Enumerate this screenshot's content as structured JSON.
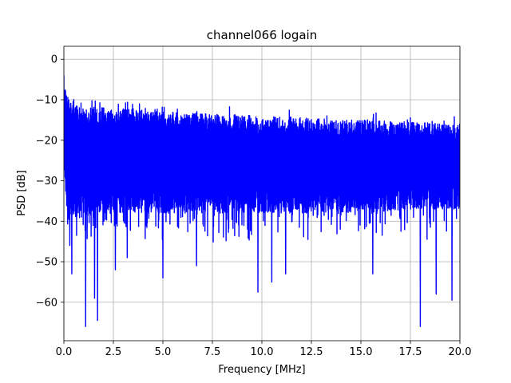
{
  "chart_data": {
    "type": "line",
    "title": "channel066 logain",
    "xlabel": "Frequency [MHz]",
    "ylabel": "PSD [dB]",
    "xlim": [
      0,
      20
    ],
    "ylim": [
      -69.5,
      3.2
    ],
    "xticks": [
      0,
      2.5,
      5,
      7.5,
      10,
      12.5,
      15,
      17.5,
      20
    ],
    "xtick_labels": [
      "0.0",
      "2.5",
      "5.0",
      "7.5",
      "10.0",
      "12.5",
      "15.0",
      "17.5",
      "20.0"
    ],
    "yticks": [
      0,
      -10,
      -20,
      -30,
      -40,
      -50,
      -60
    ],
    "ytick_labels": [
      "0",
      "−10",
      "−20",
      "−30",
      "−40",
      "−50",
      "−60"
    ],
    "grid": true,
    "series": [
      {
        "color": "#0000ff",
        "description_of_shape": "dense noise-like PSD",
        "envelope": {
          "x": [
            0,
            0.1,
            0.3,
            1,
            2.5,
            5,
            7.5,
            10,
            12.5,
            15,
            17.5,
            20
          ],
          "upper": [
            -4,
            -8,
            -10,
            -12,
            -12,
            -13,
            -13.5,
            -14,
            -14.5,
            -15,
            -15.5,
            -16
          ],
          "lower": [
            -25,
            -38,
            -40,
            -39,
            -38,
            -38,
            -38,
            -38,
            -38,
            -38,
            -37,
            -37
          ]
        },
        "dips": [
          {
            "x": 0.3,
            "y": -46
          },
          {
            "x": 0.4,
            "y": -53
          },
          {
            "x": 1.1,
            "y": -66
          },
          {
            "x": 1.55,
            "y": -59
          },
          {
            "x": 1.7,
            "y": -64.5
          },
          {
            "x": 2.6,
            "y": -52
          },
          {
            "x": 3.2,
            "y": -49
          },
          {
            "x": 5.0,
            "y": -54
          },
          {
            "x": 6.7,
            "y": -51
          },
          {
            "x": 9.8,
            "y": -57.5
          },
          {
            "x": 10.5,
            "y": -55
          },
          {
            "x": 11.2,
            "y": -53
          },
          {
            "x": 15.6,
            "y": -53
          },
          {
            "x": 18.0,
            "y": -66
          },
          {
            "x": 18.8,
            "y": -58
          },
          {
            "x": 19.6,
            "y": -59.5
          }
        ]
      }
    ]
  }
}
